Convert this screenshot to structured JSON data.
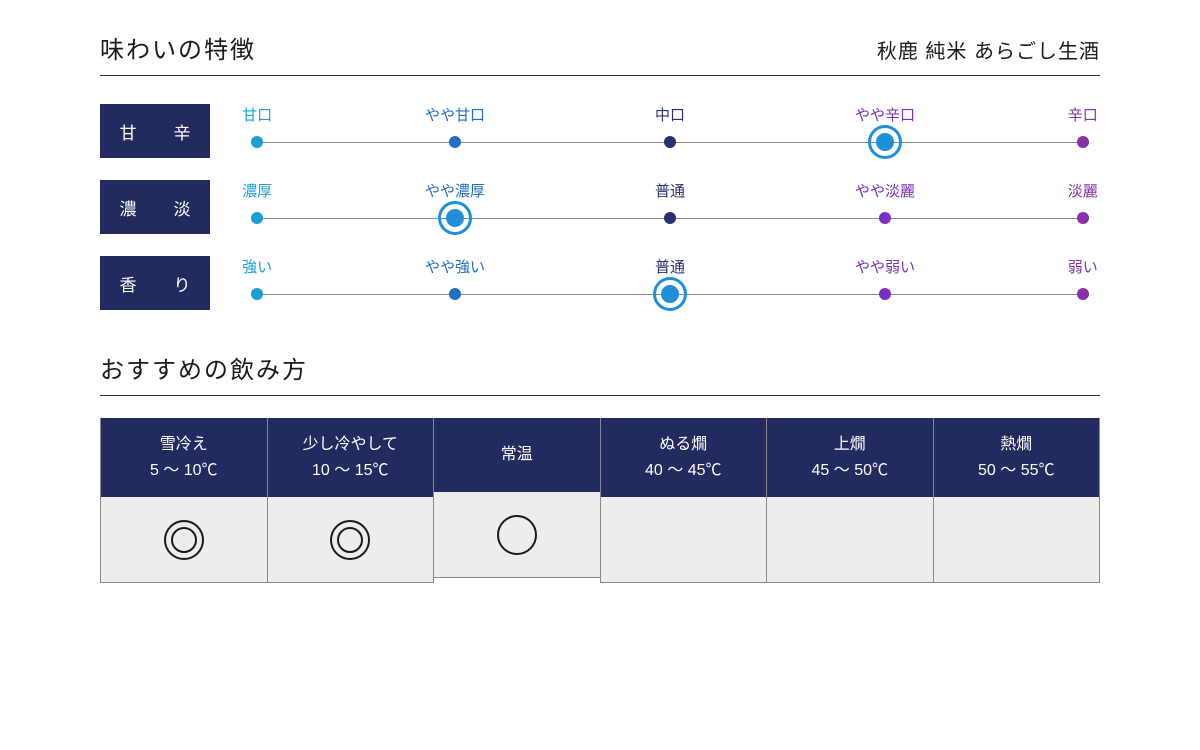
{
  "colors": {
    "navy": "#232a60",
    "rule": "#232a60",
    "line": "#888888",
    "point_colors": [
      "#1a9fd9",
      "#1f6fc1",
      "#263072",
      "#7a2fbf",
      "#8a2fa8"
    ],
    "select_ring": "#1f8fd9"
  },
  "header": {
    "title": "味わいの特徴",
    "product": "秋鹿 純米 あらごし生酒"
  },
  "scales": {
    "positions_pct": [
      2,
      25,
      50,
      75,
      98
    ],
    "rows": [
      {
        "label": "甘　辛",
        "points": [
          "甘口",
          "やや甘口",
          "中口",
          "やや辛口",
          "辛口"
        ],
        "selected": 3
      },
      {
        "label": "濃　淡",
        "points": [
          "濃厚",
          "やや濃厚",
          "普通",
          "やや淡麗",
          "淡麗"
        ],
        "selected": 1
      },
      {
        "label": "香　り",
        "points": [
          "強い",
          "やや強い",
          "普通",
          "やや弱い",
          "弱い"
        ],
        "selected": 2
      }
    ]
  },
  "serving": {
    "title": "おすすめの飲み方",
    "columns": [
      {
        "name": "雪冷え",
        "temp": "5 〜 10℃",
        "mark": "double"
      },
      {
        "name": "少し冷やして",
        "temp": "10 〜 15℃",
        "mark": "double"
      },
      {
        "name": "常温",
        "temp": "",
        "mark": "single"
      },
      {
        "name": "ぬる燗",
        "temp": "40 〜 45℃",
        "mark": ""
      },
      {
        "name": "上燗",
        "temp": "45 〜 50℃",
        "mark": ""
      },
      {
        "name": "熱燗",
        "temp": "50 〜 55℃",
        "mark": ""
      }
    ]
  }
}
